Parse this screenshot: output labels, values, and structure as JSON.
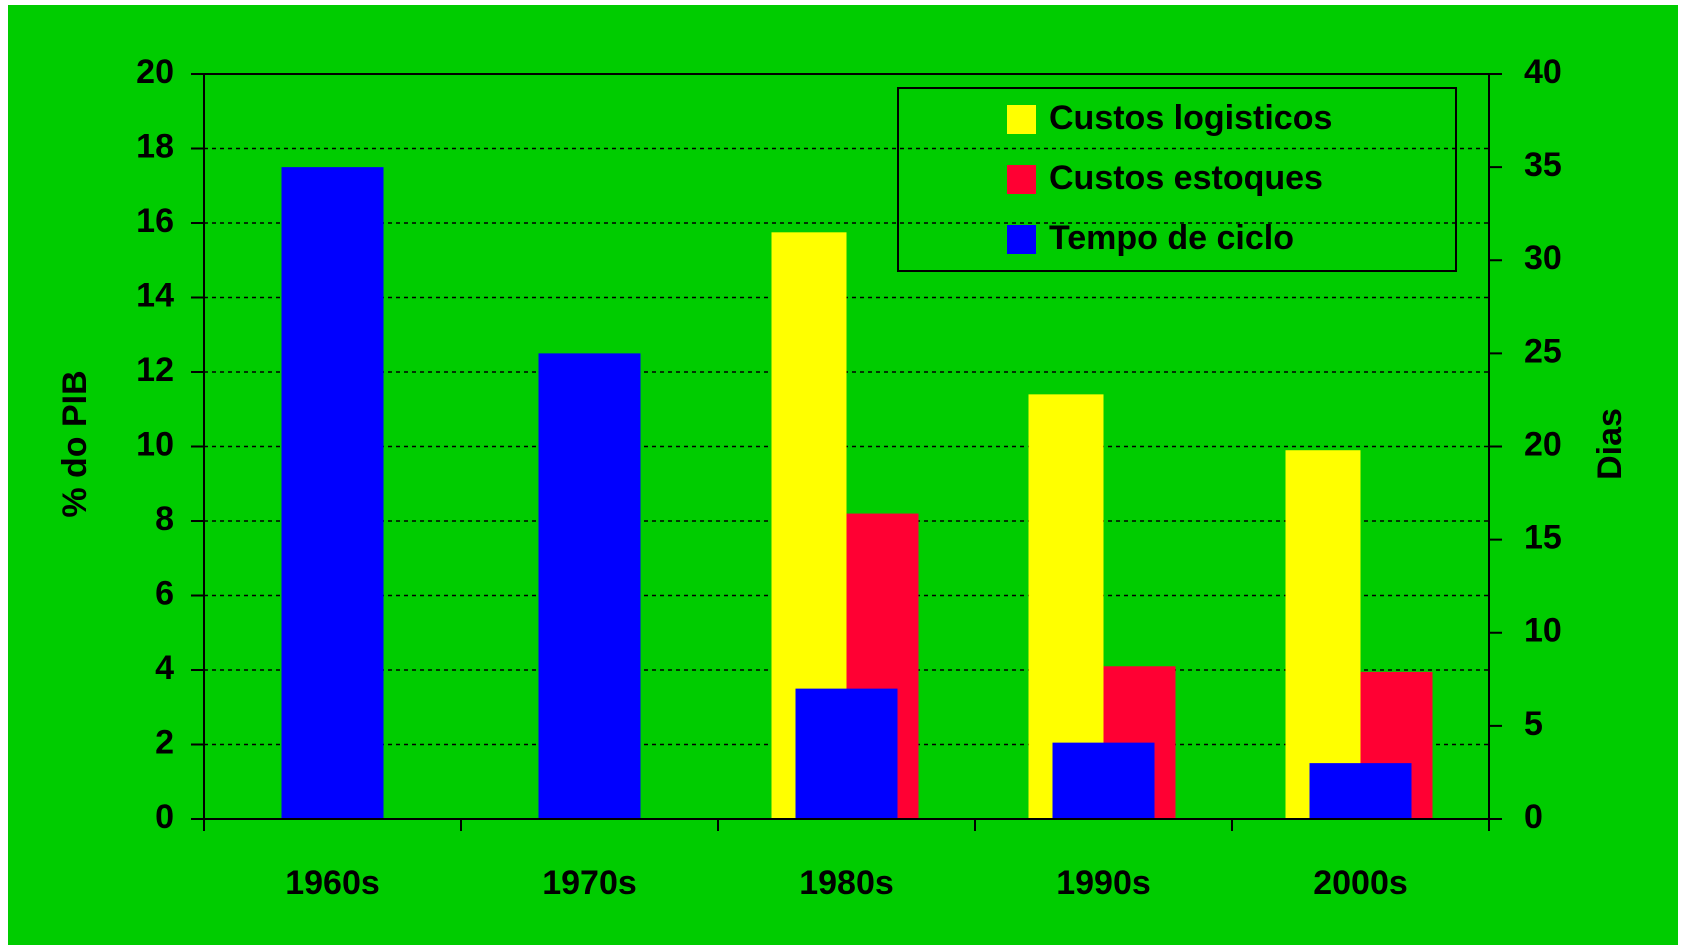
{
  "chart_data": {
    "type": "bar",
    "categories": [
      "1960s",
      "1970s",
      "1980s",
      "1990s",
      "2000s"
    ],
    "series": [
      {
        "name": "Custos logisticos",
        "color": "#ffff00",
        "values": [
          null,
          null,
          15.75,
          11.4,
          9.9
        ]
      },
      {
        "name": "Custos estoques",
        "color": "#ff0033",
        "values": [
          null,
          null,
          8.2,
          4.1,
          3.95
        ]
      },
      {
        "name": "Tempo de ciclo",
        "color": "#0000ff",
        "axis": "y2",
        "values": [
          35,
          25,
          7,
          4.1,
          3
        ]
      }
    ],
    "ylabel": "% do PIB",
    "y2label": "Dias",
    "ylim": [
      0,
      20
    ],
    "yticks": [
      0,
      2,
      4,
      6,
      8,
      10,
      12,
      14,
      16,
      18,
      20
    ],
    "y2lim": [
      0,
      40
    ],
    "y2ticks": [
      0,
      5,
      10,
      15,
      20,
      25,
      30,
      35,
      40
    ],
    "grid": true,
    "legend": "upper right",
    "background": "#00cc00"
  }
}
